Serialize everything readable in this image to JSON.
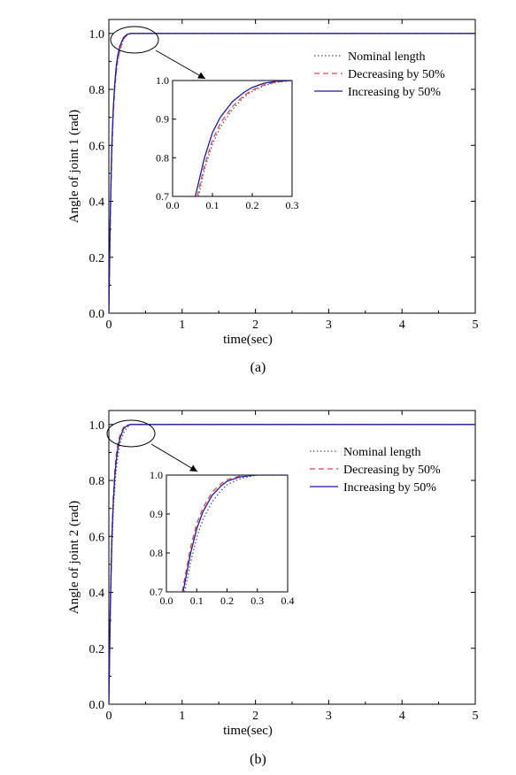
{
  "chart_data": [
    {
      "type": "line",
      "caption": "(a)",
      "xlabel": "time(sec)",
      "ylabel": "Angle of joint 1 (rad)",
      "xlim": [
        0,
        5
      ],
      "ylim": [
        0,
        1.05
      ],
      "xticks": [
        0,
        1,
        2,
        3,
        4,
        5
      ],
      "yticks": [
        "0.0",
        "0.2",
        "0.4",
        "0.6",
        "0.8",
        "1.0"
      ],
      "legend_position": "upper-right",
      "grid": false,
      "series": [
        {
          "name": "Nominal length",
          "style": "dotted",
          "color": "#555555",
          "x": [
            0,
            0.02,
            0.04,
            0.06,
            0.08,
            0.1,
            0.12,
            0.15,
            0.2,
            0.25,
            0.3,
            0.5,
            1,
            2,
            5
          ],
          "y": [
            0,
            0.35,
            0.58,
            0.72,
            0.8,
            0.86,
            0.9,
            0.94,
            0.98,
            0.995,
            1.0,
            1.0,
            1.0,
            1.0,
            1.0
          ]
        },
        {
          "name": "Decreasing by 50%",
          "style": "dashed",
          "color": "#e8474c",
          "x": [
            0,
            0.02,
            0.04,
            0.06,
            0.08,
            0.1,
            0.12,
            0.15,
            0.2,
            0.25,
            0.3,
            0.5,
            1,
            2,
            5
          ],
          "y": [
            0,
            0.34,
            0.57,
            0.71,
            0.8,
            0.86,
            0.9,
            0.94,
            0.98,
            0.995,
            1.0,
            1.0,
            1.0,
            1.0,
            1.0
          ]
        },
        {
          "name": "Increasing by 50%",
          "style": "solid",
          "color": "#1a1aa6",
          "x": [
            0,
            0.02,
            0.04,
            0.06,
            0.08,
            0.1,
            0.12,
            0.15,
            0.2,
            0.25,
            0.3,
            0.5,
            1,
            2,
            5
          ],
          "y": [
            0,
            0.36,
            0.6,
            0.73,
            0.82,
            0.88,
            0.92,
            0.955,
            0.985,
            0.997,
            1.0,
            1.0,
            1.0,
            1.0,
            1.0
          ]
        }
      ],
      "inset": {
        "xlim": [
          0,
          0.3
        ],
        "ylim": [
          0.7,
          1.0
        ],
        "xticks": [
          "0.0",
          "0.1",
          "0.2",
          "0.3"
        ],
        "yticks": [
          "0.7",
          "0.8",
          "0.9",
          "1.0"
        ],
        "series": [
          {
            "name": "Nominal length",
            "x": [
              0.065,
              0.08,
              0.1,
              0.12,
              0.15,
              0.18,
              0.2,
              0.23,
              0.26,
              0.3
            ],
            "y": [
              0.7,
              0.77,
              0.835,
              0.88,
              0.925,
              0.958,
              0.972,
              0.987,
              0.995,
              1.0
            ]
          },
          {
            "name": "Decreasing by 50%",
            "x": [
              0.062,
              0.08,
              0.1,
              0.12,
              0.15,
              0.18,
              0.2,
              0.23,
              0.26,
              0.3
            ],
            "y": [
              0.7,
              0.78,
              0.845,
              0.89,
              0.932,
              0.962,
              0.975,
              0.989,
              0.996,
              1.0
            ]
          },
          {
            "name": "Increasing by 50%",
            "x": [
              0.057,
              0.08,
              0.1,
              0.12,
              0.15,
              0.18,
              0.2,
              0.23,
              0.26,
              0.3
            ],
            "y": [
              0.7,
              0.8,
              0.865,
              0.905,
              0.945,
              0.97,
              0.982,
              0.993,
              0.998,
              1.0
            ]
          }
        ]
      }
    },
    {
      "type": "line",
      "caption": "(b)",
      "xlabel": "time(sec)",
      "ylabel": "Angle of joint 2 (rad)",
      "xlim": [
        0,
        5
      ],
      "ylim": [
        0,
        1.05
      ],
      "xticks": [
        0,
        1,
        2,
        3,
        4,
        5
      ],
      "yticks": [
        "0.0",
        "0.2",
        "0.4",
        "0.6",
        "0.8",
        "1.0"
      ],
      "legend_position": "upper-right",
      "grid": false,
      "series": [
        {
          "name": "Nominal length",
          "style": "dotted",
          "color": "#555555",
          "x": [
            0,
            0.02,
            0.04,
            0.06,
            0.08,
            0.1,
            0.12,
            0.15,
            0.2,
            0.25,
            0.3,
            0.5,
            1,
            2,
            5
          ],
          "y": [
            0,
            0.33,
            0.55,
            0.69,
            0.77,
            0.84,
            0.88,
            0.93,
            0.97,
            0.99,
            1.0,
            1.0,
            1.0,
            1.0,
            1.0
          ]
        },
        {
          "name": "Decreasing by 50%",
          "style": "dashed",
          "color": "#e8474c",
          "x": [
            0,
            0.02,
            0.04,
            0.06,
            0.08,
            0.1,
            0.12,
            0.15,
            0.2,
            0.25,
            0.3,
            0.5,
            1,
            2,
            5
          ],
          "y": [
            0,
            0.36,
            0.6,
            0.74,
            0.83,
            0.89,
            0.93,
            0.96,
            0.99,
            0.998,
            1.0,
            1.0,
            1.0,
            1.0,
            1.0
          ]
        },
        {
          "name": "Increasing by 50%",
          "style": "solid",
          "color": "#1a1aa6",
          "x": [
            0,
            0.02,
            0.04,
            0.06,
            0.08,
            0.1,
            0.12,
            0.15,
            0.2,
            0.25,
            0.3,
            0.5,
            1,
            2,
            5
          ],
          "y": [
            0,
            0.35,
            0.58,
            0.72,
            0.81,
            0.87,
            0.91,
            0.95,
            0.985,
            0.996,
            1.0,
            1.0,
            1.0,
            1.0,
            1.0
          ]
        }
      ],
      "inset": {
        "xlim": [
          0,
          0.4
        ],
        "ylim": [
          0.7,
          1.0
        ],
        "xticks": [
          "0.0",
          "0.1",
          "0.2",
          "0.3",
          "0.4"
        ],
        "yticks": [
          "0.7",
          "0.8",
          "0.9",
          "1.0"
        ],
        "series": [
          {
            "name": "Nominal length",
            "x": [
              0.06,
              0.08,
              0.1,
              0.12,
              0.15,
              0.18,
              0.2,
              0.24,
              0.28,
              0.3,
              0.4
            ],
            "y": [
              0.7,
              0.775,
              0.84,
              0.885,
              0.93,
              0.96,
              0.975,
              0.99,
              0.997,
              1.0,
              1.0
            ]
          },
          {
            "name": "Decreasing by 50%",
            "x": [
              0.052,
              0.08,
              0.1,
              0.12,
              0.15,
              0.18,
              0.2,
              0.24,
              0.28,
              0.3,
              0.4
            ],
            "y": [
              0.7,
              0.815,
              0.875,
              0.915,
              0.955,
              0.978,
              0.988,
              0.997,
              1.0,
              1.0,
              1.0
            ]
          },
          {
            "name": "Increasing by 50%",
            "x": [
              0.055,
              0.08,
              0.1,
              0.12,
              0.15,
              0.18,
              0.2,
              0.24,
              0.28,
              0.3,
              0.4
            ],
            "y": [
              0.7,
              0.8,
              0.862,
              0.905,
              0.947,
              0.972,
              0.984,
              0.995,
              0.999,
              1.0,
              1.0
            ]
          }
        ]
      }
    }
  ]
}
